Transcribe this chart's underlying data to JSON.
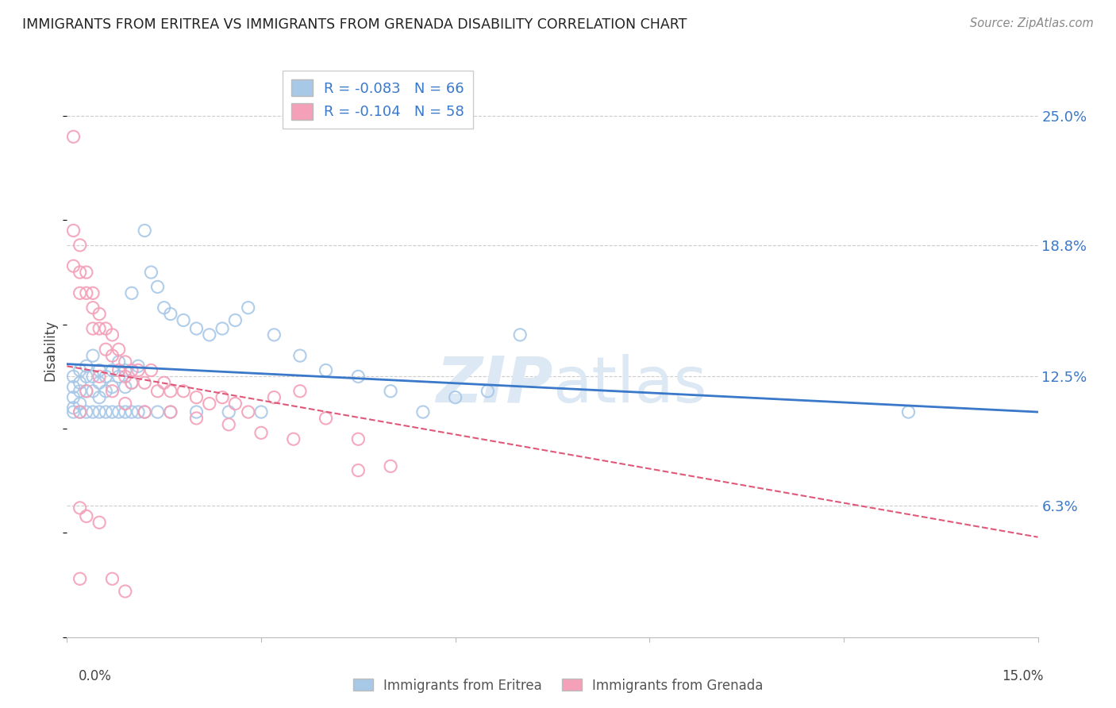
{
  "title": "IMMIGRANTS FROM ERITREA VS IMMIGRANTS FROM GRENADA DISABILITY CORRELATION CHART",
  "source": "Source: ZipAtlas.com",
  "ylabel": "Disability",
  "ytick_vals": [
    0.063,
    0.125,
    0.188,
    0.25
  ],
  "ytick_labels": [
    "6.3%",
    "12.5%",
    "18.8%",
    "25.0%"
  ],
  "xmin": 0.0,
  "xmax": 0.15,
  "ymin": 0.0,
  "ymax": 0.275,
  "eritrea_color": "#a8c8e8",
  "grenada_color": "#f4a0b8",
  "trend_eritrea_color": "#3a78c9",
  "trend_grenada_color": "#e05878",
  "watermark_color": "#dce8f4",
  "legend_eritrea_R": "-0.083",
  "legend_eritrea_N": "66",
  "legend_grenada_R": "-0.104",
  "legend_grenada_N": "58",
  "legend_label_eritrea": "Immigrants from Eritrea",
  "legend_label_grenada": "Immigrants from Grenada",
  "background_color": "#ffffff",
  "grid_color": "#cccccc",
  "eritrea_trend_start": 0.131,
  "eritrea_trend_end": 0.108,
  "grenada_trend_start": 0.13,
  "grenada_trend_end": 0.048,
  "eritrea_x": [
    0.001,
    0.001,
    0.001,
    0.001,
    0.002,
    0.002,
    0.002,
    0.002,
    0.003,
    0.003,
    0.003,
    0.004,
    0.004,
    0.004,
    0.005,
    0.005,
    0.005,
    0.006,
    0.006,
    0.007,
    0.007,
    0.008,
    0.008,
    0.009,
    0.009,
    0.01,
    0.01,
    0.011,
    0.012,
    0.013,
    0.014,
    0.015,
    0.016,
    0.018,
    0.02,
    0.022,
    0.024,
    0.026,
    0.028,
    0.032,
    0.036,
    0.04,
    0.045,
    0.05,
    0.055,
    0.06,
    0.065,
    0.07,
    0.13,
    0.001,
    0.002,
    0.003,
    0.004,
    0.005,
    0.006,
    0.007,
    0.008,
    0.009,
    0.01,
    0.011,
    0.012,
    0.014,
    0.016,
    0.02,
    0.025,
    0.03
  ],
  "eritrea_y": [
    0.125,
    0.12,
    0.115,
    0.11,
    0.128,
    0.122,
    0.118,
    0.112,
    0.13,
    0.125,
    0.118,
    0.135,
    0.125,
    0.118,
    0.128,
    0.122,
    0.115,
    0.125,
    0.118,
    0.128,
    0.12,
    0.132,
    0.125,
    0.128,
    0.12,
    0.165,
    0.122,
    0.13,
    0.195,
    0.175,
    0.168,
    0.158,
    0.155,
    0.152,
    0.148,
    0.145,
    0.148,
    0.152,
    0.158,
    0.145,
    0.135,
    0.128,
    0.125,
    0.118,
    0.108,
    0.115,
    0.118,
    0.145,
    0.108,
    0.108,
    0.108,
    0.108,
    0.108,
    0.108,
    0.108,
    0.108,
    0.108,
    0.108,
    0.108,
    0.108,
    0.108,
    0.108,
    0.108,
    0.108,
    0.108,
    0.108
  ],
  "grenada_x": [
    0.001,
    0.001,
    0.001,
    0.002,
    0.002,
    0.002,
    0.003,
    0.003,
    0.004,
    0.004,
    0.004,
    0.005,
    0.005,
    0.006,
    0.006,
    0.007,
    0.007,
    0.008,
    0.008,
    0.009,
    0.009,
    0.01,
    0.01,
    0.011,
    0.012,
    0.013,
    0.014,
    0.015,
    0.016,
    0.018,
    0.02,
    0.022,
    0.024,
    0.026,
    0.028,
    0.032,
    0.036,
    0.04,
    0.045,
    0.05,
    0.002,
    0.003,
    0.005,
    0.007,
    0.009,
    0.012,
    0.016,
    0.02,
    0.025,
    0.03,
    0.035,
    0.045,
    0.002,
    0.003,
    0.005,
    0.007,
    0.009,
    0.002
  ],
  "grenada_y": [
    0.24,
    0.195,
    0.178,
    0.188,
    0.175,
    0.165,
    0.175,
    0.165,
    0.165,
    0.158,
    0.148,
    0.155,
    0.148,
    0.148,
    0.138,
    0.145,
    0.135,
    0.138,
    0.128,
    0.132,
    0.125,
    0.128,
    0.122,
    0.128,
    0.122,
    0.128,
    0.118,
    0.122,
    0.118,
    0.118,
    0.115,
    0.112,
    0.115,
    0.112,
    0.108,
    0.115,
    0.118,
    0.105,
    0.095,
    0.082,
    0.108,
    0.118,
    0.125,
    0.118,
    0.112,
    0.108,
    0.108,
    0.105,
    0.102,
    0.098,
    0.095,
    0.08,
    0.062,
    0.058,
    0.055,
    0.028,
    0.022,
    0.028
  ]
}
